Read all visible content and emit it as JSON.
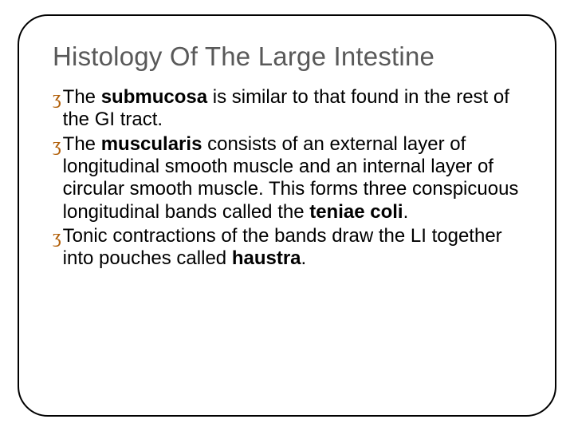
{
  "title": "Histology Of The Large Intestine",
  "bullet_marker": "ʒ",
  "colors": {
    "title": "#595959",
    "body_text": "#000000",
    "bullet_marker": "#b2600a",
    "border": "#000000",
    "background": "#ffffff"
  },
  "typography": {
    "title_fontsize": 33,
    "body_fontsize": 24,
    "line_height": 1.18,
    "font_family": "Arial"
  },
  "bullets": [
    {
      "segments": [
        {
          "text": "The ",
          "bold": false
        },
        {
          "text": "submucosa",
          "bold": true
        },
        {
          "text": " is similar to that found in the rest of the GI tract.",
          "bold": false
        }
      ]
    },
    {
      "segments": [
        {
          "text": "The ",
          "bold": false
        },
        {
          "text": "muscularis",
          "bold": true
        },
        {
          "text": " consists of an external layer of longitudinal smooth muscle and an internal layer of circular smooth muscle.  This forms three conspicuous longitudinal bands called the ",
          "bold": false
        },
        {
          "text": "teniae coli",
          "bold": true
        },
        {
          "text": ".",
          "bold": false
        }
      ]
    },
    {
      "segments": [
        {
          "text": "Tonic contractions of the bands draw the LI together into pouches called ",
          "bold": false
        },
        {
          "text": "haustra",
          "bold": true
        },
        {
          "text": ".",
          "bold": false
        }
      ]
    }
  ]
}
